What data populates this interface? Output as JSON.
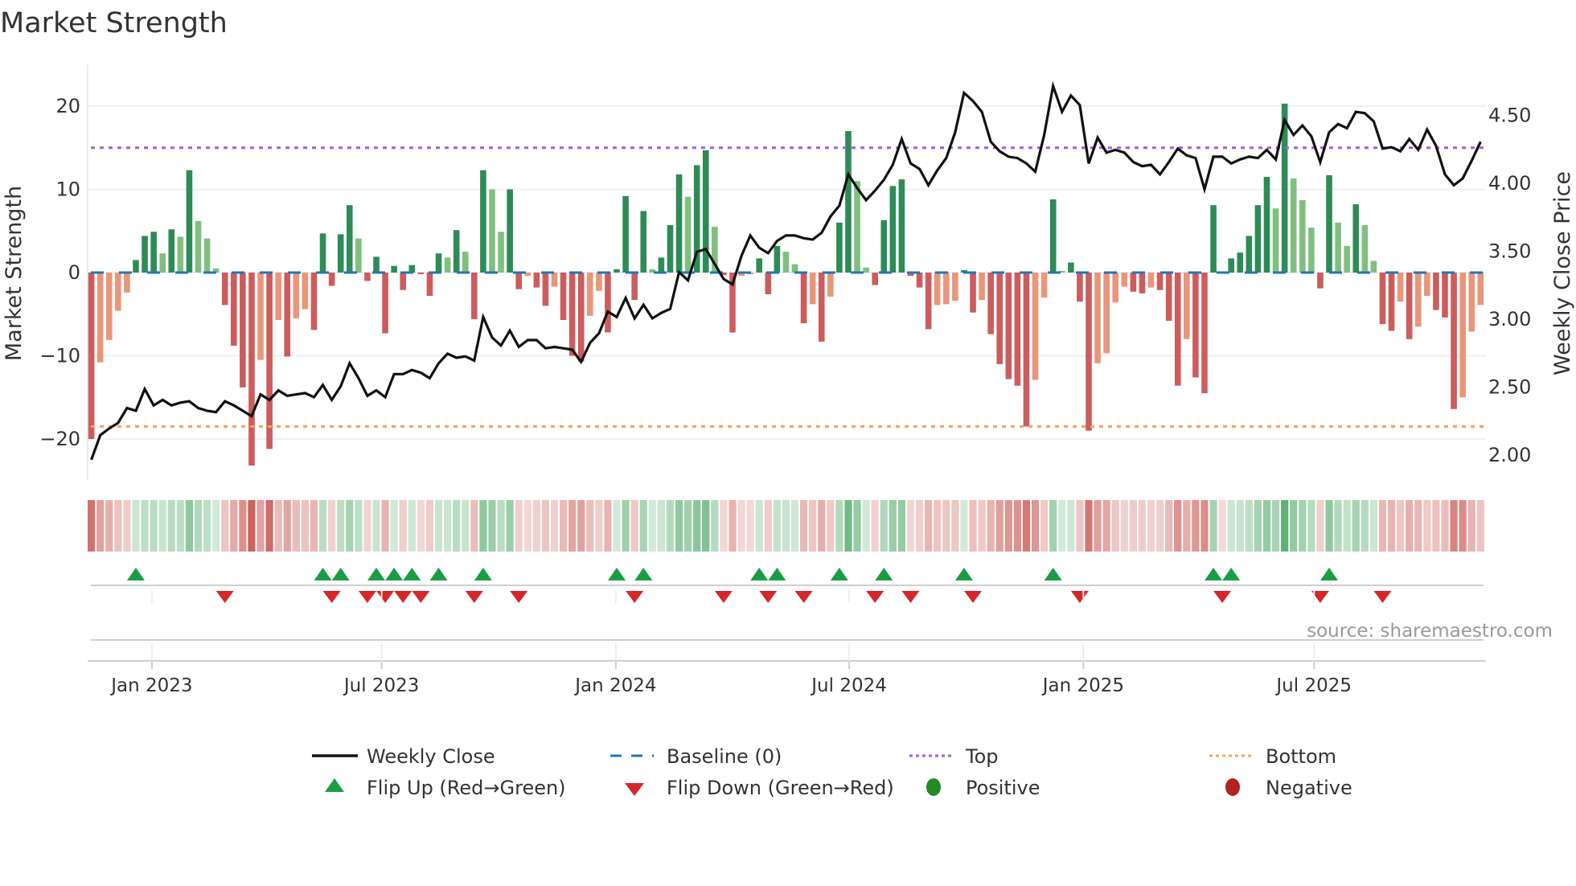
{
  "title": "Market Strength",
  "source": "source: sharemaestro.com",
  "legend": {
    "weekly_close": "Weekly Close",
    "baseline": "Baseline (0)",
    "top": "Top",
    "bottom": "Bottom",
    "flip_up": "Flip Up (Red→Green)",
    "flip_down": "Flip Down (Green→Red)",
    "positive": "Positive",
    "negative": "Negative"
  },
  "colors": {
    "strong_green": "#2e8b57",
    "weak_green": "#80bf80",
    "strong_red": "#cd5c5c",
    "weak_red": "#e9967a",
    "price_line": "#111111",
    "baseline": "#1f77b4",
    "top": "#9b5fe0",
    "bottom": "#f4a460",
    "flip_up": "#1a9e45",
    "flip_down": "#d62728",
    "positive": "#228b22",
    "negative": "#b22222"
  },
  "chart_data": {
    "type": "bar",
    "title": "Market Strength",
    "ylabel": "Market Strength",
    "y2label": "Weekly Close Price",
    "ylim": [
      -25,
      25
    ],
    "y2lim": [
      1.85,
      4.8
    ],
    "yticks": [
      20,
      10,
      0,
      -10,
      -20
    ],
    "ytick_labels": [
      "20",
      "10",
      "0",
      "−10",
      "−20"
    ],
    "y2ticks": [
      4.5,
      4.0,
      3.5,
      3.0,
      2.5,
      2.0
    ],
    "y2tick_labels": [
      "4.50",
      "4.00",
      "3.50",
      "3.00",
      "2.50",
      "2.00"
    ],
    "xticks": [
      {
        "label": "Jan 2023",
        "week": 6.8
      },
      {
        "label": "Jul 2023",
        "week": 32.6
      },
      {
        "label": "Jan 2024",
        "week": 58.9
      },
      {
        "label": "Jul 2024",
        "week": 85.1
      },
      {
        "label": "Jan 2025",
        "week": 111.4
      },
      {
        "label": "Jul 2025",
        "week": 137.3
      }
    ],
    "top_level": 15,
    "bottom_level": -18.5,
    "baseline": 0,
    "grid": true,
    "legend_position": "bottom",
    "strength": [
      -20,
      -10.8,
      -8.1,
      -4.6,
      -2.4,
      1.5,
      4.4,
      4.9,
      2.3,
      5.2,
      4.3,
      12.3,
      6.2,
      4.1,
      0.5,
      -3.9,
      -8.8,
      -13.8,
      -23.2,
      -10.5,
      -21.2,
      -5.7,
      -10.1,
      -5.5,
      -4.4,
      -6.9,
      4.7,
      -1.6,
      4.6,
      8.1,
      4.1,
      -1.0,
      1.9,
      -7.3,
      0.8,
      -2.1,
      0.9,
      -0.2,
      -2.8,
      2.3,
      1.8,
      5.1,
      2.5,
      -5.6,
      12.3,
      10.0,
      4.9,
      10.0,
      -2.0,
      -0.4,
      -1.8,
      -4.0,
      -1.7,
      -5.7,
      -10.0,
      -10.7,
      -5.2,
      -2.2,
      -7.2,
      0.4,
      9.2,
      -3.3,
      7.4,
      0.4,
      1.8,
      5.7,
      11.8,
      9.1,
      12.9,
      14.7,
      5.5,
      -0.3,
      -7.2,
      -0.4,
      -0.2,
      1.7,
      -2.6,
      3.2,
      2.5,
      1.0,
      -6.1,
      -3.8,
      -8.3,
      -2.9,
      6.0,
      17.0,
      11.0,
      0.6,
      -1.5,
      6.3,
      10.4,
      11.2,
      -0.4,
      -1.8,
      -6.8,
      -3.9,
      -3.8,
      -3.4,
      0.3,
      -4.8,
      -3.3,
      -7.4,
      -11.0,
      -12.8,
      -13.6,
      -18.5,
      -12.9,
      -3.0,
      8.8,
      0.2,
      1.2,
      -3.5,
      -19.0,
      -10.9,
      -9.7,
      -3.6,
      -1.7,
      -2.3,
      -2.5,
      -1.8,
      -2.1,
      -5.8,
      -13.6,
      -8.0,
      -12.6,
      -14.5,
      8.1,
      -0.1,
      1.7,
      2.4,
      4.4,
      8.1,
      11.5,
      7.7,
      20.3,
      11.3,
      8.7,
      5.4,
      -1.9,
      11.7,
      6.0,
      3.2,
      8.2,
      5.7,
      1.4,
      -6.2,
      -7.0,
      -3.5,
      -8.0,
      -6.5,
      -2.8,
      -4.5,
      -5.4,
      -16.4,
      -15.0,
      -7.1,
      -3.9
    ],
    "weekly_close": [
      1.96,
      2.14,
      2.19,
      2.23,
      2.34,
      2.32,
      2.48,
      2.36,
      2.4,
      2.36,
      2.38,
      2.39,
      2.34,
      2.32,
      2.31,
      2.39,
      2.36,
      2.32,
      2.28,
      2.44,
      2.4,
      2.47,
      2.43,
      2.44,
      2.45,
      2.42,
      2.51,
      2.4,
      2.5,
      2.67,
      2.56,
      2.43,
      2.47,
      2.42,
      2.59,
      2.59,
      2.62,
      2.6,
      2.56,
      2.67,
      2.74,
      2.71,
      2.72,
      2.69,
      3.01,
      2.86,
      2.8,
      2.91,
      2.79,
      2.84,
      2.84,
      2.78,
      2.79,
      2.78,
      2.77,
      2.68,
      2.82,
      2.89,
      3.05,
      3.01,
      3.15,
      3.0,
      3.1,
      3.0,
      3.04,
      3.07,
      3.34,
      3.28,
      3.49,
      3.51,
      3.4,
      3.29,
      3.25,
      3.46,
      3.61,
      3.52,
      3.48,
      3.57,
      3.61,
      3.61,
      3.59,
      3.58,
      3.63,
      3.75,
      3.83,
      4.06,
      3.96,
      3.87,
      3.94,
      4.02,
      4.13,
      4.32,
      4.14,
      4.1,
      3.98,
      4.09,
      4.18,
      4.37,
      4.66,
      4.6,
      4.52,
      4.3,
      4.23,
      4.19,
      4.18,
      4.14,
      4.08,
      4.35,
      4.71,
      4.52,
      4.64,
      4.57,
      4.14,
      4.33,
      4.22,
      4.24,
      4.22,
      4.15,
      4.12,
      4.13,
      4.06,
      4.15,
      4.25,
      4.2,
      4.18,
      3.95,
      4.19,
      4.19,
      4.14,
      4.17,
      4.19,
      4.18,
      4.24,
      4.17,
      4.46,
      4.35,
      4.42,
      4.34,
      4.15,
      4.37,
      4.43,
      4.4,
      4.52,
      4.51,
      4.45,
      4.25,
      4.26,
      4.23,
      4.32,
      4.24,
      4.39,
      4.27,
      4.06,
      3.98,
      4.03,
      4.16,
      4.3
    ],
    "flip_up_weeks": [
      5,
      26,
      28,
      32,
      34,
      36,
      39,
      44,
      59,
      62,
      75,
      77,
      84,
      89,
      98,
      108,
      126,
      128,
      139
    ],
    "flip_down_weeks": [
      15,
      27,
      31,
      33,
      35,
      37,
      43,
      48,
      61,
      71,
      76,
      80,
      88,
      92,
      99,
      111,
      127,
      138,
      145
    ]
  }
}
